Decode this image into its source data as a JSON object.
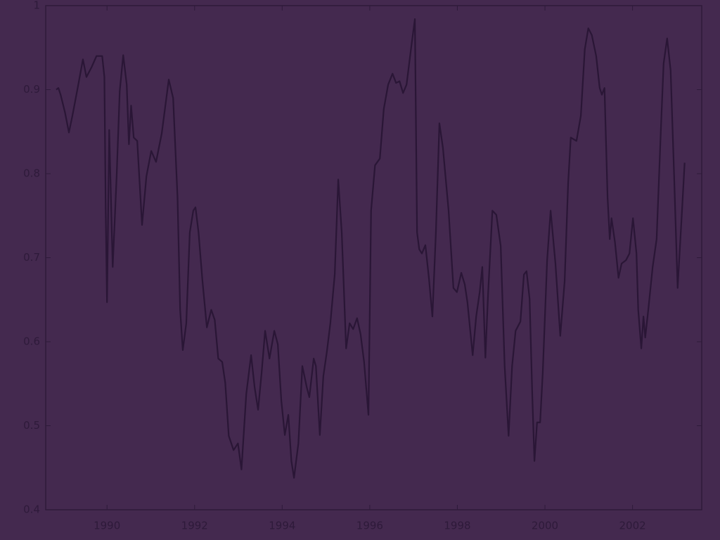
{
  "chart_data": {
    "type": "line",
    "x": [
      1988.84,
      1988.89,
      1988.94,
      1989.04,
      1989.13,
      1989.21,
      1989.33,
      1989.45,
      1989.53,
      1989.65,
      1989.76,
      1989.89,
      1989.94,
      1989.97,
      1990.0,
      1990.05,
      1990.13,
      1990.22,
      1990.29,
      1990.37,
      1990.45,
      1990.5,
      1990.55,
      1990.61,
      1990.69,
      1990.8,
      1990.9,
      1991.01,
      1991.12,
      1991.25,
      1991.41,
      1991.51,
      1991.61,
      1991.67,
      1991.73,
      1991.81,
      1991.89,
      1991.97,
      1992.02,
      1992.09,
      1992.18,
      1992.28,
      1992.38,
      1992.46,
      1992.54,
      1992.63,
      1992.7,
      1992.78,
      1992.89,
      1992.99,
      1993.07,
      1993.18,
      1993.29,
      1993.37,
      1993.45,
      1993.53,
      1993.61,
      1993.71,
      1993.82,
      1993.9,
      1993.98,
      1994.06,
      1994.14,
      1994.21,
      1994.27,
      1994.37,
      1994.46,
      1994.56,
      1994.62,
      1994.72,
      1994.77,
      1994.86,
      1994.94,
      1995.02,
      1995.1,
      1995.2,
      1995.28,
      1995.36,
      1995.46,
      1995.54,
      1995.62,
      1995.71,
      1995.79,
      1995.87,
      1995.97,
      1996.03,
      1996.12,
      1996.23,
      1996.32,
      1996.42,
      1996.52,
      1996.6,
      1996.68,
      1996.76,
      1996.84,
      1996.95,
      1997.03,
      1997.08,
      1997.13,
      1997.19,
      1997.27,
      1997.35,
      1997.43,
      1997.51,
      1997.59,
      1997.67,
      1997.8,
      1997.91,
      1997.99,
      1998.09,
      1998.17,
      1998.23,
      1998.35,
      1998.43,
      1998.51,
      1998.57,
      1998.64,
      1998.7,
      1998.8,
      1998.89,
      1998.99,
      1999.08,
      1999.17,
      1999.25,
      1999.33,
      1999.44,
      1999.52,
      1999.58,
      1999.65,
      1999.71,
      1999.76,
      1999.82,
      1999.89,
      1999.95,
      2000.05,
      2000.13,
      2000.24,
      2000.35,
      2000.45,
      2000.53,
      2000.59,
      2000.72,
      2000.82,
      2000.91,
      2000.99,
      2001.07,
      2001.17,
      2001.25,
      2001.3,
      2001.36,
      2001.43,
      2001.48,
      2001.52,
      2001.6,
      2001.68,
      2001.75,
      2001.85,
      2001.93,
      2002.01,
      2002.09,
      2002.13,
      2002.2,
      2002.25,
      2002.29,
      2002.36,
      2002.46,
      2002.55,
      2002.65,
      2002.71,
      2002.79,
      2002.87,
      2002.95,
      2003.03,
      2003.13,
      2003.19
    ],
    "values": [
      0.9,
      0.902,
      0.894,
      0.873,
      0.849,
      0.869,
      0.902,
      0.936,
      0.915,
      0.927,
      0.94,
      0.94,
      0.915,
      0.756,
      0.647,
      0.852,
      0.689,
      0.797,
      0.898,
      0.941,
      0.906,
      0.835,
      0.881,
      0.843,
      0.839,
      0.739,
      0.797,
      0.827,
      0.814,
      0.848,
      0.912,
      0.89,
      0.772,
      0.638,
      0.59,
      0.622,
      0.73,
      0.756,
      0.76,
      0.73,
      0.672,
      0.617,
      0.638,
      0.626,
      0.58,
      0.576,
      0.551,
      0.488,
      0.471,
      0.479,
      0.448,
      0.538,
      0.584,
      0.546,
      0.519,
      0.563,
      0.613,
      0.58,
      0.613,
      0.597,
      0.53,
      0.489,
      0.513,
      0.458,
      0.438,
      0.479,
      0.571,
      0.546,
      0.534,
      0.58,
      0.571,
      0.489,
      0.559,
      0.588,
      0.622,
      0.68,
      0.793,
      0.73,
      0.592,
      0.622,
      0.615,
      0.628,
      0.609,
      0.576,
      0.513,
      0.756,
      0.81,
      0.818,
      0.877,
      0.906,
      0.919,
      0.908,
      0.91,
      0.896,
      0.906,
      0.952,
      0.984,
      0.73,
      0.71,
      0.705,
      0.715,
      0.676,
      0.63,
      0.73,
      0.86,
      0.831,
      0.756,
      0.664,
      0.659,
      0.682,
      0.668,
      0.647,
      0.584,
      0.63,
      0.659,
      0.689,
      0.581,
      0.655,
      0.756,
      0.751,
      0.714,
      0.571,
      0.488,
      0.571,
      0.613,
      0.624,
      0.68,
      0.684,
      0.651,
      0.538,
      0.458,
      0.504,
      0.504,
      0.563,
      0.697,
      0.756,
      0.693,
      0.607,
      0.672,
      0.789,
      0.843,
      0.839,
      0.869,
      0.948,
      0.973,
      0.965,
      0.94,
      0.902,
      0.894,
      0.902,
      0.772,
      0.722,
      0.747,
      0.718,
      0.676,
      0.693,
      0.697,
      0.705,
      0.747,
      0.705,
      0.638,
      0.592,
      0.63,
      0.605,
      0.638,
      0.689,
      0.722,
      0.856,
      0.931,
      0.961,
      0.923,
      0.797,
      0.664,
      0.756,
      0.813
    ],
    "color": "#2a1636",
    "xlim": [
      1988.6,
      2003.58
    ],
    "xticks": [
      1990,
      1992,
      1994,
      1996,
      1998,
      2000,
      2002
    ],
    "ylim": [
      0.4,
      1
    ],
    "yticks": [
      0.4,
      0.5,
      0.6,
      0.7,
      0.8,
      0.9,
      1
    ]
  }
}
